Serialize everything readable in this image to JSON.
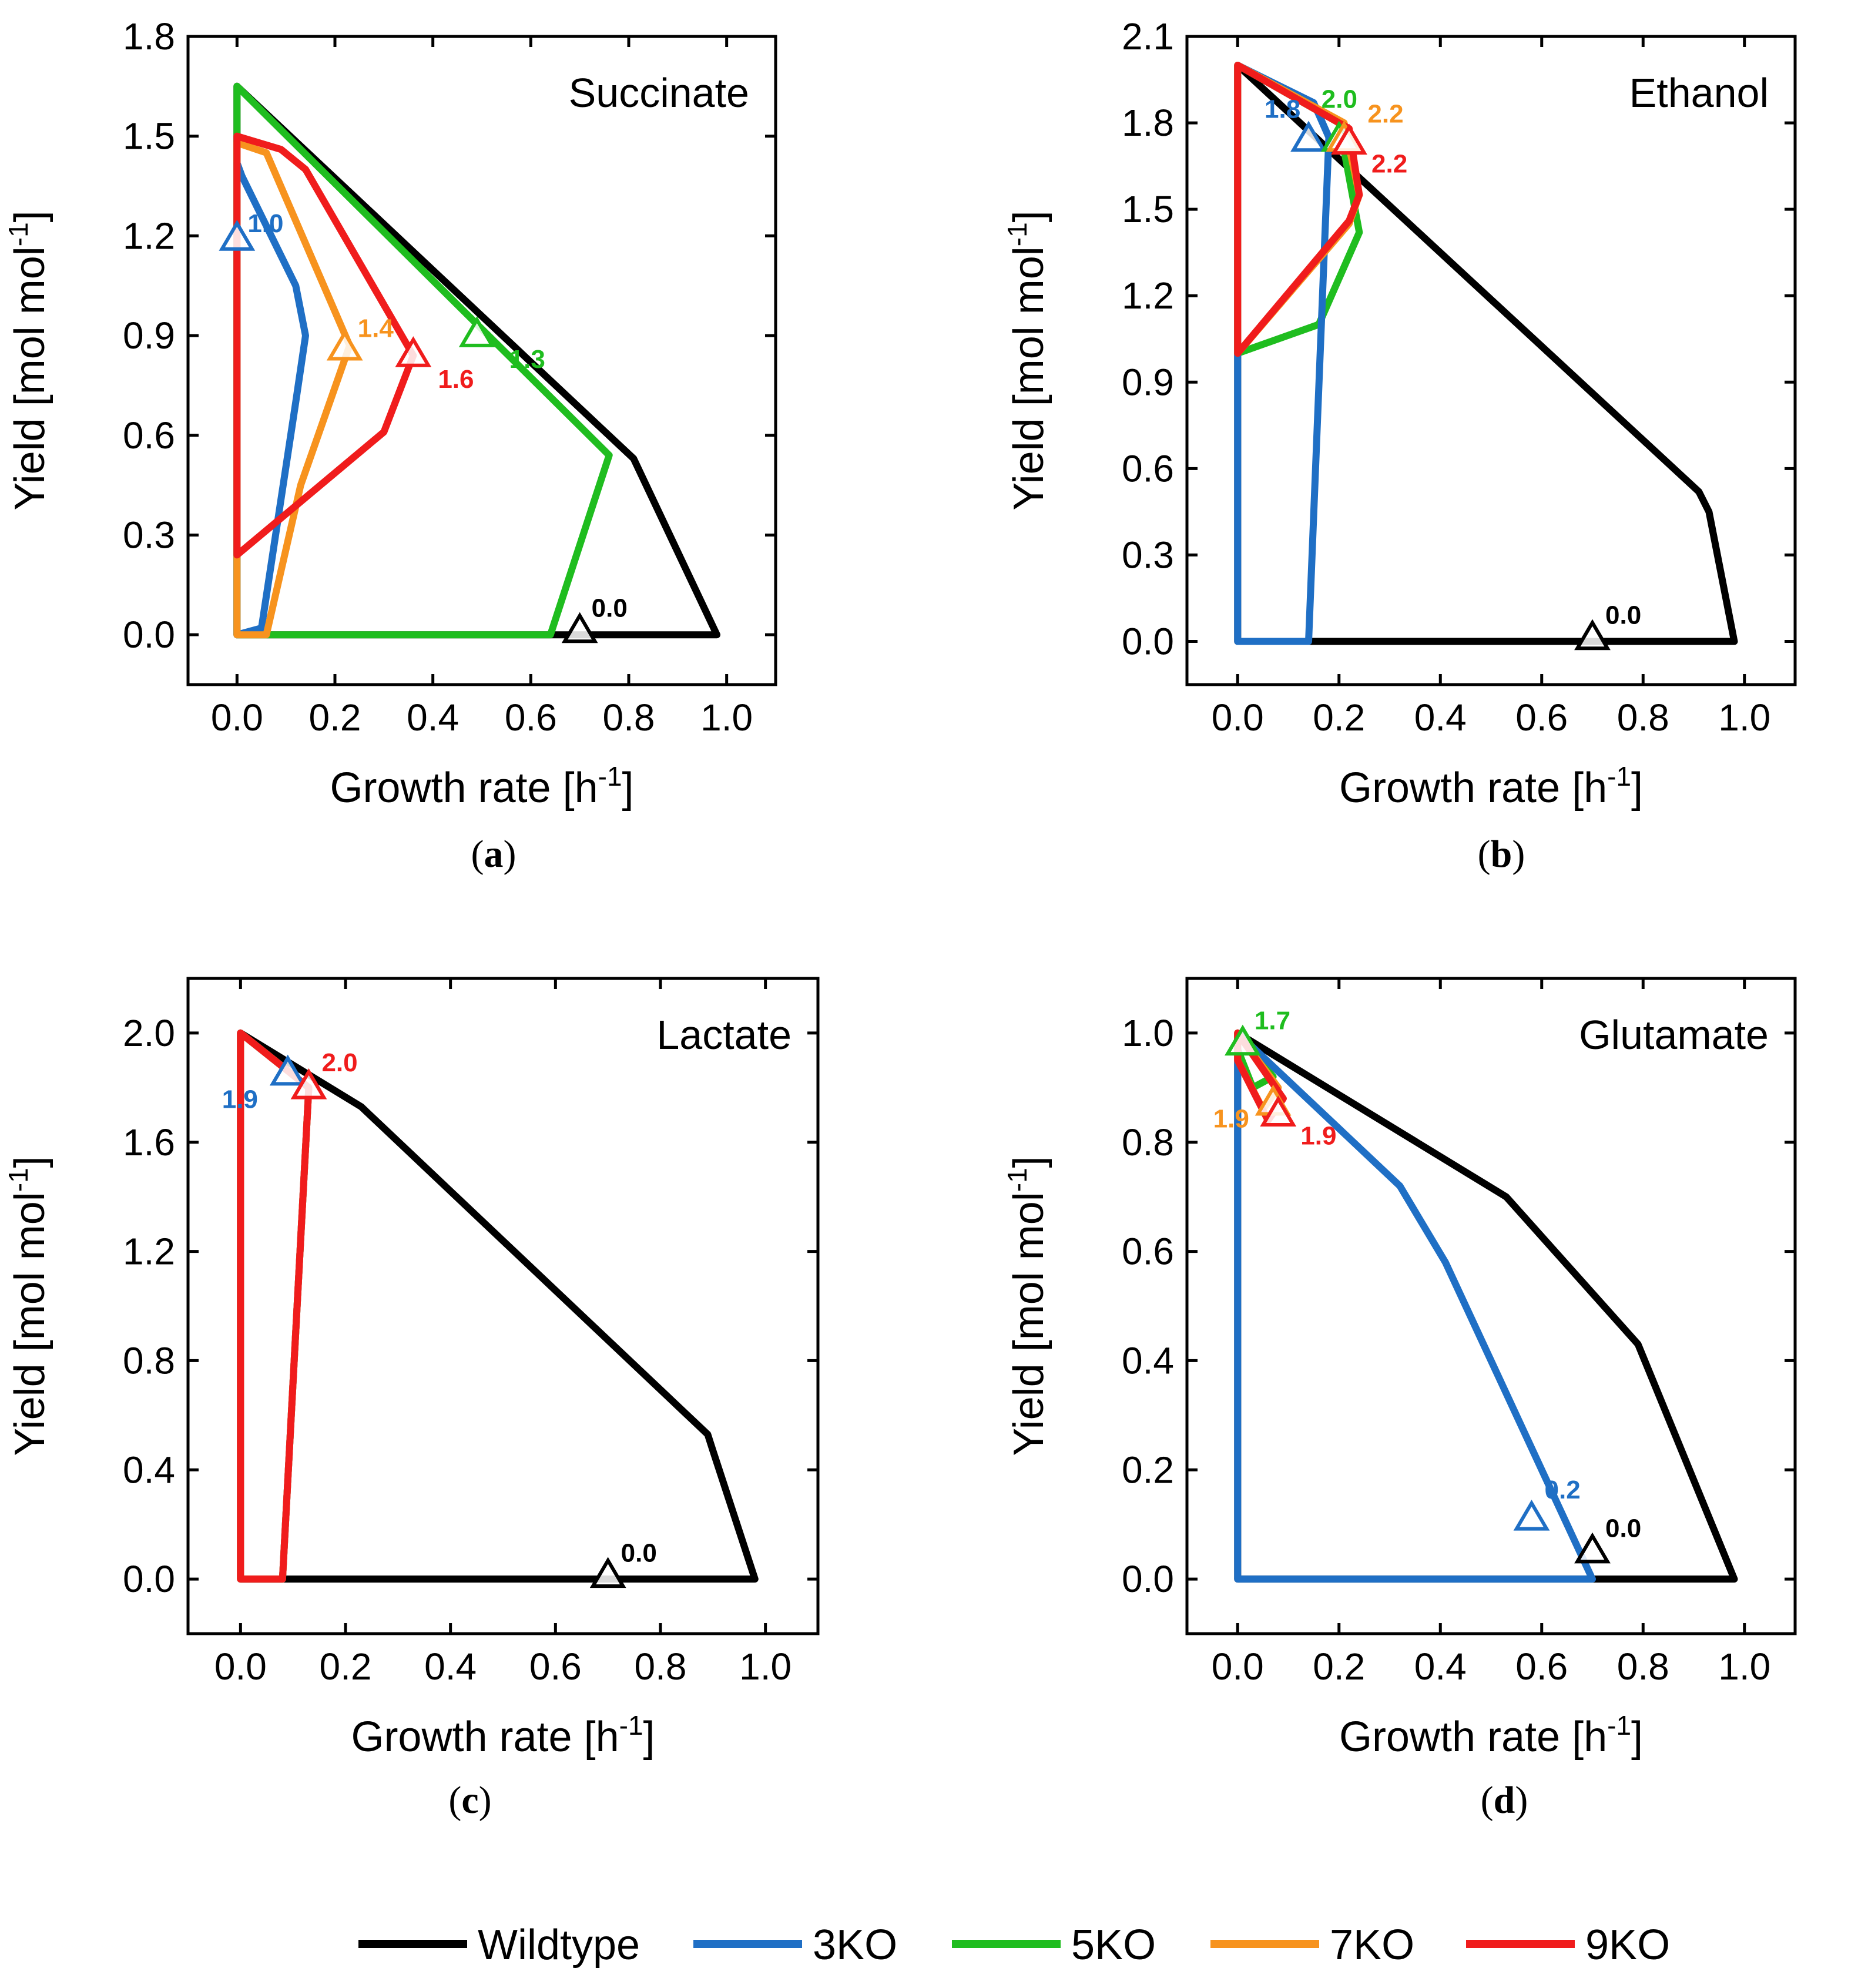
{
  "chart_data": [
    {
      "type": "line",
      "panel": "a",
      "caption": "(a)",
      "title": "Succinate",
      "xlabel": "Growth rate [h",
      "xlabel_sup": "-1",
      "xlabel_end": "]",
      "ylabel": "Yield [mol mol",
      "ylabel_sup": "-1",
      "ylabel_end": "]",
      "xlim": [
        -0.1,
        1.1
      ],
      "ylim": [
        -0.15,
        1.8
      ],
      "xticks": [
        "0.0",
        "0.2",
        "0.4",
        "0.6",
        "0.8",
        "1.0"
      ],
      "yticks": [
        "0.0",
        "0.3",
        "0.6",
        "0.9",
        "1.2",
        "1.5",
        "1.8"
      ],
      "series": [
        {
          "name": "Wildtype",
          "x": [
            0,
            0.81,
            0.98,
            0,
            0
          ],
          "y": [
            1.65,
            0.53,
            0,
            0,
            1.65
          ]
        },
        {
          "name": "3KO",
          "x": [
            0,
            0.01,
            0.12,
            0.14,
            0.12,
            0.05,
            0,
            0
          ],
          "y": [
            1.42,
            1.38,
            1.05,
            0.9,
            0.7,
            0.02,
            0,
            1.42
          ]
        },
        {
          "name": "5KO",
          "x": [
            0,
            0.76,
            0.64,
            0,
            0
          ],
          "y": [
            1.65,
            0.54,
            0,
            0,
            1.65
          ]
        },
        {
          "name": "7KO",
          "x": [
            0,
            0.06,
            0.23,
            0.13,
            0.06,
            0,
            0
          ],
          "y": [
            1.48,
            1.45,
            0.87,
            0.45,
            0,
            0,
            1.48
          ]
        },
        {
          "name": "9KO",
          "x": [
            0,
            0.09,
            0.14,
            0.36,
            0.3,
            0,
            0
          ],
          "y": [
            1.5,
            1.46,
            1.4,
            0.84,
            0.61,
            0.24,
            1.5
          ]
        }
      ],
      "markers": [
        {
          "series": "Wildtype",
          "x": 0.7,
          "y": 0.01,
          "label": "0.0"
        },
        {
          "series": "3KO",
          "x": 0.0,
          "y": 1.19,
          "label": "1.0"
        },
        {
          "series": "5KO",
          "x": 0.49,
          "y": 0.9,
          "label": "1.3"
        },
        {
          "series": "7KO",
          "x": 0.22,
          "y": 0.86,
          "label": "1.4"
        },
        {
          "series": "9KO",
          "x": 0.36,
          "y": 0.84,
          "label": "1.6"
        }
      ]
    },
    {
      "type": "line",
      "panel": "b",
      "caption": "(b)",
      "title": "Ethanol",
      "xlabel": "Growth rate [h",
      "xlabel_sup": "-1",
      "xlabel_end": "]",
      "ylabel": "Yield [mol mol",
      "ylabel_sup": "-1",
      "ylabel_end": "]",
      "xlim": [
        -0.1,
        1.1
      ],
      "ylim": [
        -0.15,
        2.1
      ],
      "xticks": [
        "0.0",
        "0.2",
        "0.4",
        "0.6",
        "0.8",
        "1.0"
      ],
      "yticks": [
        "0.0",
        "0.3",
        "0.6",
        "0.9",
        "1.2",
        "1.5",
        "1.8",
        "2.1"
      ],
      "series": [
        {
          "name": "Wildtype",
          "x": [
            0,
            0.91,
            0.93,
            0.98,
            0,
            0
          ],
          "y": [
            2.0,
            0.52,
            0.45,
            0,
            0,
            2.0
          ]
        },
        {
          "name": "3KO",
          "x": [
            0,
            0.15,
            0.18,
            0.14,
            0,
            0
          ],
          "y": [
            2.0,
            1.87,
            1.75,
            0,
            0,
            2.0
          ]
        },
        {
          "name": "5KO",
          "x": [
            0,
            0.2,
            0.24,
            0.16,
            0,
            0
          ],
          "y": [
            2.0,
            1.8,
            1.42,
            1.1,
            1.0,
            2.0
          ]
        },
        {
          "name": "7KO",
          "x": [
            0,
            0.21,
            0.24,
            0.22,
            0,
            0
          ],
          "y": [
            2.0,
            1.8,
            1.55,
            1.45,
            1.0,
            2.0
          ]
        },
        {
          "name": "9KO",
          "x": [
            0,
            0.22,
            0.24,
            0.22,
            0,
            0
          ],
          "y": [
            2.0,
            1.78,
            1.55,
            1.46,
            1.0,
            2.0
          ]
        }
      ],
      "markers": [
        {
          "series": "Wildtype",
          "x": 0.7,
          "y": 0.01,
          "label": "0.0"
        },
        {
          "series": "3KO",
          "x": 0.14,
          "y": 1.74,
          "label": "1.8"
        },
        {
          "series": "5KO",
          "x": 0.2,
          "y": 1.74,
          "label": "2.0"
        },
        {
          "series": "7KO",
          "x": 0.21,
          "y": 1.74,
          "label": "2.2"
        },
        {
          "series": "9KO",
          "x": 0.22,
          "y": 1.73,
          "label": "2.2"
        }
      ]
    },
    {
      "type": "line",
      "panel": "c",
      "caption": "(c)",
      "title": "Lactate",
      "xlabel": "Growth rate [h",
      "xlabel_sup": "-1",
      "xlabel_end": "]",
      "ylabel": "Yield [mol mol",
      "ylabel_sup": "-1",
      "ylabel_end": "]",
      "xlim": [
        -0.1,
        1.1
      ],
      "ylim": [
        -0.2,
        2.2
      ],
      "xticks": [
        "0.0",
        "0.2",
        "0.4",
        "0.6",
        "0.8",
        "1.0"
      ],
      "yticks": [
        "0.0",
        "0.4",
        "0.8",
        "1.2",
        "1.6",
        "2.0"
      ],
      "series": [
        {
          "name": "Wildtype",
          "x": [
            0,
            0.23,
            0.89,
            0.9,
            0.98,
            0,
            0
          ],
          "y": [
            2.0,
            1.73,
            0.53,
            0.47,
            0,
            0,
            2.0
          ]
        },
        {
          "name": "3KO",
          "x": [
            0,
            0.13,
            0.08,
            0,
            0
          ],
          "y": [
            2.0,
            1.8,
            0,
            0,
            2.0
          ]
        },
        {
          "name": "5KO",
          "x": [
            0,
            0.13,
            0.08,
            0,
            0
          ],
          "y": [
            2.0,
            1.8,
            0,
            0,
            2.0
          ]
        },
        {
          "name": "7KO",
          "x": [
            0,
            0.13,
            0.08,
            0,
            0
          ],
          "y": [
            2.0,
            1.8,
            0,
            0,
            2.0
          ]
        },
        {
          "name": "9KO",
          "x": [
            0,
            0.13,
            0.08,
            0,
            0
          ],
          "y": [
            2.0,
            1.8,
            0,
            0,
            2.0
          ]
        }
      ],
      "markers": [
        {
          "series": "Wildtype",
          "x": 0.7,
          "y": 0.01,
          "label": "0.0"
        },
        {
          "series": "3KO",
          "x": 0.09,
          "y": 1.85,
          "label": "1.9"
        },
        {
          "series": "9KO",
          "x": 0.13,
          "y": 1.8,
          "label": "2.0"
        }
      ]
    },
    {
      "type": "line",
      "panel": "d",
      "caption": "(d)",
      "title": "Glutamate",
      "xlabel": "Growth rate [h",
      "xlabel_sup": "-1",
      "xlabel_end": "]",
      "ylabel": "Yield [mol mol",
      "ylabel_sup": "-1",
      "ylabel_end": "]",
      "xlim": [
        -0.1,
        1.1
      ],
      "ylim": [
        -0.1,
        1.1
      ],
      "xticks": [
        "0.0",
        "0.2",
        "0.4",
        "0.6",
        "0.8",
        "1.0"
      ],
      "yticks": [
        "0.0",
        "0.2",
        "0.4",
        "0.6",
        "0.8",
        "1.0"
      ],
      "series": [
        {
          "name": "Wildtype",
          "x": [
            0,
            0.53,
            0.79,
            0.98,
            0,
            0
          ],
          "y": [
            1.0,
            0.7,
            0.43,
            0,
            0,
            1.0
          ]
        },
        {
          "name": "3KO",
          "x": [
            0,
            0.32,
            0.41,
            0.7,
            0,
            0
          ],
          "y": [
            1.0,
            0.72,
            0.58,
            0,
            0,
            1.0
          ]
        },
        {
          "name": "5KO",
          "x": [
            0,
            0.07,
            0.03,
            0,
            0
          ],
          "y": [
            1.0,
            0.92,
            0.9,
            0.97,
            1.0
          ]
        },
        {
          "name": "7KO",
          "x": [
            0,
            0.08,
            0.05,
            0,
            0
          ],
          "y": [
            1.0,
            0.9,
            0.86,
            0.95,
            1.0
          ]
        },
        {
          "name": "9KO",
          "x": [
            0,
            0.09,
            0.06,
            0,
            0
          ],
          "y": [
            1.0,
            0.88,
            0.84,
            0.95,
            1.0
          ]
        }
      ],
      "markers": [
        {
          "series": "Wildtype",
          "x": 0.7,
          "y": 0.05,
          "label": "0.0"
        },
        {
          "series": "3KO",
          "x": 0.58,
          "y": 0.11,
          "label": "0.2"
        },
        {
          "series": "5KO",
          "x": 0.01,
          "y": 0.98,
          "label": "1.7"
        },
        {
          "series": "7KO",
          "x": 0.07,
          "y": 0.87,
          "label": "1.9"
        },
        {
          "series": "9KO",
          "x": 0.08,
          "y": 0.85,
          "label": "1.9"
        }
      ]
    }
  ],
  "legend": {
    "position": "bottom",
    "entries": [
      {
        "name": "Wildtype",
        "label": "Wildtype",
        "color": "#000000"
      },
      {
        "name": "3KO",
        "label": "3KO",
        "color": "#1f6fc5"
      },
      {
        "name": "5KO",
        "label": "5KO",
        "color": "#1fbd1f"
      },
      {
        "name": "7KO",
        "label": "7KO",
        "color": "#f7931e"
      },
      {
        "name": "9KO",
        "label": "9KO",
        "color": "#f01c1c"
      }
    ]
  }
}
